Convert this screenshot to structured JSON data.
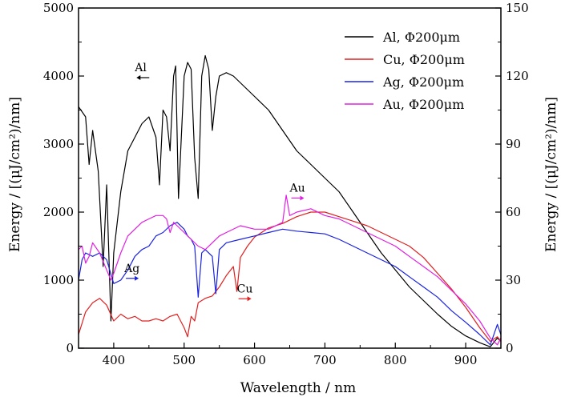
{
  "chart_data": {
    "type": "line",
    "xlabel": "Wavelength / nm",
    "ylabel_left": "Energy / [(μJ/cm²)/nm]",
    "ylabel_right": "Energy / [(μJ/cm²)/nm]",
    "xlim": [
      350,
      950
    ],
    "ylim_left": [
      0,
      5000
    ],
    "ylim_right": [
      0,
      150
    ],
    "x_ticks": [
      400,
      500,
      600,
      700,
      800,
      900
    ],
    "y_left_ticks": [
      0,
      1000,
      2000,
      3000,
      4000,
      5000
    ],
    "y_right_ticks": [
      0,
      30,
      60,
      90,
      120,
      150
    ],
    "grid": false,
    "legend_position": "top-right",
    "series": [
      {
        "name": "Al, Φ200μm",
        "color": "#000000",
        "axis": "left",
        "x": [
          350,
          360,
          365,
          370,
          378,
          385,
          390,
          396,
          400,
          410,
          420,
          430,
          440,
          450,
          460,
          465,
          470,
          475,
          480,
          485,
          488,
          492,
          500,
          505,
          510,
          515,
          520,
          525,
          530,
          535,
          540,
          545,
          550,
          560,
          570,
          580,
          600,
          620,
          640,
          660,
          680,
          700,
          720,
          740,
          760,
          780,
          800,
          820,
          840,
          860,
          880,
          900,
          920,
          935,
          945,
          950
        ],
        "values": [
          3550,
          3400,
          2700,
          3200,
          2600,
          1200,
          2400,
          400,
          1400,
          2300,
          2900,
          3100,
          3300,
          3400,
          3100,
          2400,
          3500,
          3400,
          2900,
          4000,
          4150,
          2200,
          4000,
          4200,
          4100,
          2800,
          2200,
          4000,
          4300,
          4100,
          3200,
          3700,
          4000,
          4050,
          4000,
          3900,
          3700,
          3500,
          3200,
          2900,
          2700,
          2500,
          2300,
          2000,
          1700,
          1400,
          1150,
          900,
          700,
          500,
          320,
          180,
          80,
          20,
          150,
          100
        ]
      },
      {
        "name": "Cu, Φ200μm",
        "color": "#e02020",
        "axis": "right",
        "x": [
          350,
          360,
          370,
          380,
          390,
          400,
          410,
          420,
          430,
          440,
          450,
          460,
          470,
          480,
          490,
          500,
          505,
          510,
          515,
          520,
          530,
          540,
          550,
          560,
          570,
          575,
          580,
          590,
          600,
          620,
          640,
          660,
          680,
          700,
          720,
          740,
          760,
          780,
          800,
          820,
          840,
          860,
          880,
          900,
          920,
          935,
          945,
          950
        ],
        "values": [
          6,
          16,
          20,
          22,
          19,
          12,
          15,
          13,
          14,
          12,
          12,
          13,
          12,
          14,
          15,
          9,
          5,
          14,
          12,
          20,
          22,
          23,
          27,
          32,
          36,
          25,
          40,
          45,
          49,
          53,
          55,
          58,
          60,
          60,
          58,
          56,
          54,
          51,
          48,
          45,
          40,
          33,
          26,
          18,
          9,
          3,
          5,
          3
        ]
      },
      {
        "name": "Ag, Φ200μm",
        "color": "#1a22e0",
        "axis": "left",
        "x": [
          350,
          355,
          360,
          370,
          380,
          390,
          400,
          410,
          420,
          430,
          440,
          450,
          460,
          470,
          480,
          490,
          500,
          505,
          510,
          515,
          520,
          525,
          530,
          540,
          545,
          550,
          560,
          580,
          600,
          620,
          640,
          660,
          680,
          700,
          720,
          740,
          760,
          780,
          800,
          820,
          840,
          860,
          880,
          900,
          920,
          935,
          945,
          950
        ],
        "values": [
          1000,
          1300,
          1400,
          1350,
          1400,
          1300,
          950,
          1000,
          1150,
          1350,
          1450,
          1500,
          1650,
          1700,
          1800,
          1850,
          1750,
          1650,
          1600,
          1500,
          750,
          1400,
          1450,
          1350,
          800,
          1450,
          1550,
          1600,
          1650,
          1700,
          1750,
          1720,
          1700,
          1680,
          1600,
          1500,
          1400,
          1300,
          1200,
          1050,
          900,
          750,
          550,
          380,
          200,
          50,
          350,
          200
        ]
      },
      {
        "name": "Au, Φ200μm",
        "color": "#e020e0",
        "axis": "left",
        "x": [
          350,
          355,
          360,
          365,
          370,
          380,
          390,
          396,
          400,
          410,
          420,
          430,
          440,
          450,
          460,
          470,
          475,
          480,
          485,
          490,
          500,
          510,
          520,
          530,
          540,
          550,
          560,
          580,
          600,
          620,
          640,
          645,
          650,
          660,
          680,
          700,
          720,
          740,
          760,
          780,
          800,
          820,
          840,
          860,
          880,
          900,
          920,
          935,
          945,
          950
        ],
        "values": [
          1450,
          1500,
          1250,
          1350,
          1550,
          1400,
          1150,
          1000,
          1100,
          1400,
          1650,
          1750,
          1850,
          1900,
          1950,
          1950,
          1900,
          1700,
          1850,
          1800,
          1700,
          1600,
          1500,
          1450,
          1550,
          1650,
          1700,
          1800,
          1750,
          1750,
          1850,
          2250,
          1950,
          2000,
          2050,
          1950,
          1900,
          1800,
          1700,
          1600,
          1500,
          1350,
          1200,
          1050,
          850,
          650,
          400,
          150,
          50,
          150
        ]
      }
    ],
    "annotations": [
      {
        "label": "Al",
        "x": 430,
        "y_left": 4000,
        "arrow": "left",
        "color": "#000000"
      },
      {
        "label": "Ag",
        "x": 415,
        "y_left": 1050,
        "arrow": "right",
        "color": "#1a22e0"
      },
      {
        "label": "Cu",
        "x": 575,
        "y_left": 750,
        "arrow": "right",
        "color": "#e02020"
      },
      {
        "label": "Au",
        "x": 650,
        "y_left": 2230,
        "arrow": "right",
        "color": "#e020e0"
      }
    ]
  }
}
